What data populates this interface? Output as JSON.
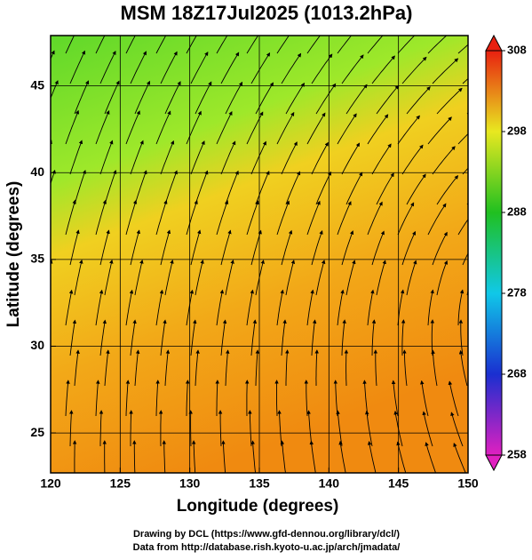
{
  "title": "MSM 18Z17Jul2025 (1013.2hPa)",
  "x_axis": {
    "label": "Longitude (degrees)",
    "lim": [
      120,
      150
    ],
    "ticks": [
      120,
      125,
      130,
      135,
      140,
      145,
      150
    ]
  },
  "y_axis": {
    "label": "Latitude  (degrees)",
    "lim": [
      22.7,
      47.9
    ],
    "ticks": [
      25,
      30,
      35,
      40,
      45
    ]
  },
  "colorbar": {
    "lim": [
      258,
      308
    ],
    "ticks": [
      258,
      268,
      278,
      288,
      298,
      308
    ],
    "colors": [
      "#e020c0",
      "#1a2fd0",
      "#10c8e8",
      "#20c020",
      "#e8e820",
      "#e82010"
    ]
  },
  "credits": [
    "Drawing by DCL (https://www.gfd-dennou.org/library/dcl/)",
    "Data from http://database.rish.kyoto-u.ac.jp/arch/jmadata/"
  ]
}
